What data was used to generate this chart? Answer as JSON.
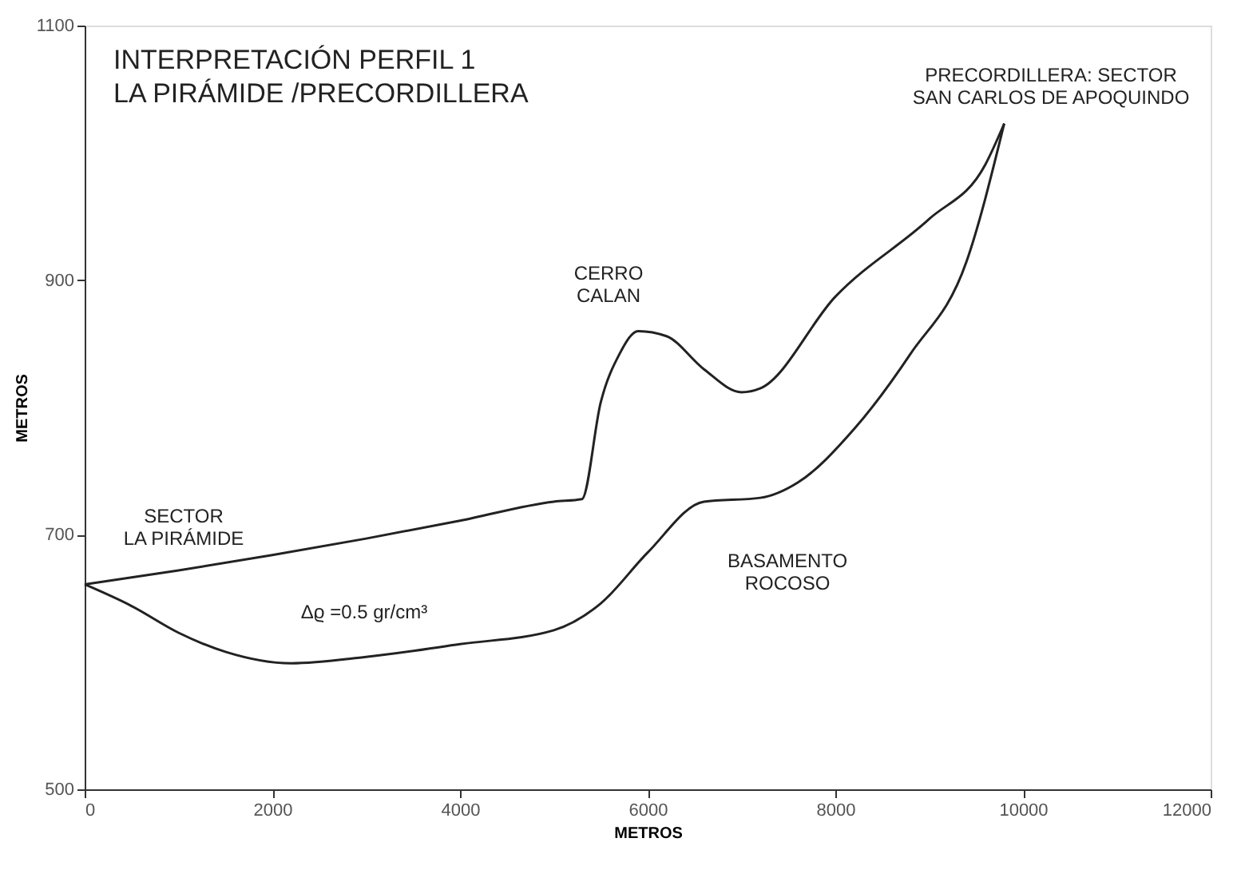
{
  "chart_data": {
    "type": "line",
    "title": [
      "INTERPRETACIÓN PERFIL 1",
      "LA PIRÁMIDE /PRECORDILLERA"
    ],
    "xlabel": "METROS",
    "ylabel": "METROS",
    "xlim": [
      0,
      12000
    ],
    "xticks": [
      0,
      2000,
      4000,
      6000,
      8000,
      10000,
      12000
    ],
    "ylim": [
      500,
      1100
    ],
    "yticks": [
      500,
      700,
      900,
      1100
    ],
    "grid": false,
    "marker": "none",
    "line_style": "solid",
    "series": [
      {
        "color": "#222222",
        "x": [
          0,
          1000,
          2000,
          3000,
          4000,
          5000,
          5300,
          5500,
          5700,
          5900,
          6200,
          6600,
          7000,
          7200,
          8000,
          9000,
          9600,
          9800
        ],
        "values": [
          661,
          672,
          684,
          697,
          711,
          726,
          728,
          804,
          842,
          860,
          856,
          830,
          812,
          815,
          887,
          948,
          991,
          1023
        ]
      },
      {
        "color": "#222222",
        "x": [
          0,
          500,
          1000,
          1500,
          2200,
          3000,
          4000,
          5000,
          5500,
          6000,
          6600,
          7200,
          7600,
          8200,
          8800,
          9400,
          9800
        ],
        "values": [
          661,
          644,
          623,
          608,
          599,
          604,
          614,
          625,
          646,
          686,
          726,
          729,
          741,
          783,
          842,
          915,
          1023
        ]
      }
    ],
    "annotations": [
      "SECTOR\nLA PIRÁMIDE",
      "CERRO\nCALAN",
      "PRECORDILLERA: SECTOR\nSAN CARLOS DE APOQUINDO",
      "BASAMENTO\nROCOSO",
      "Δϱ =0.5 gr/cm³"
    ]
  }
}
